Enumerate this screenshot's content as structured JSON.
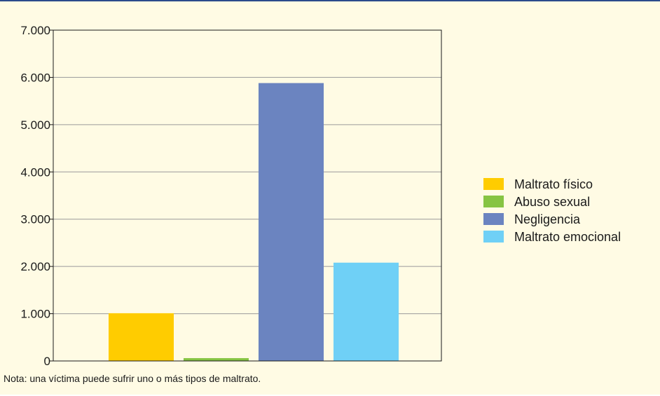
{
  "chart_data": {
    "type": "bar",
    "categories": [
      "Maltrato físico",
      "Abuso sexual",
      "Negligencia",
      "Maltrato emocional"
    ],
    "values": [
      1010,
      60,
      5880,
      2080
    ],
    "colors": [
      "#ffcc00",
      "#86c443",
      "#6b84c0",
      "#6fd0f6"
    ],
    "ylim": [
      0,
      7000
    ],
    "yticks": [
      0,
      1000,
      2000,
      3000,
      4000,
      5000,
      6000,
      7000
    ],
    "ytick_labels": [
      "0",
      "1.000",
      "2.000",
      "3.000",
      "4.000",
      "5.000",
      "6.000",
      "7.000"
    ],
    "grid": true,
    "legend_position": "right",
    "title": "",
    "xlabel": "",
    "ylabel": ""
  },
  "note": "Nota: una víctima puede sufrir uno o más tipos de maltrato."
}
